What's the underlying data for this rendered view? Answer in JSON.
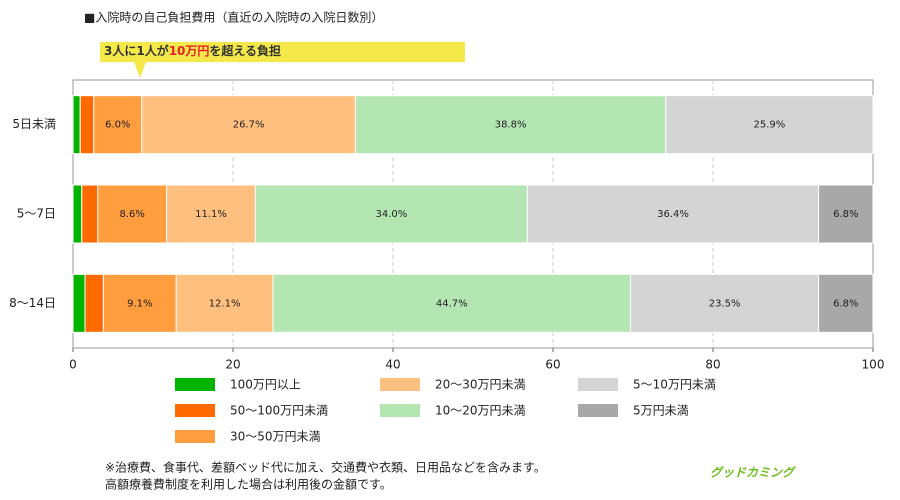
{
  "chart_data": {
    "type": "stacked-barh",
    "title": "■入院時の自己負担費用（直近の入院時の入院日数別）",
    "annotation": [
      "3人に1人が",
      "10万円",
      "を超える負担"
    ],
    "categories": [
      "5日未満",
      "5〜7日",
      "8〜14日"
    ],
    "series": [
      {
        "name": "100万円以上",
        "color": "#00b400",
        "values": [
          0.9,
          1.1,
          1.5
        ],
        "value_labels": [
          null,
          null,
          null
        ]
      },
      {
        "name": "50〜100万円未満",
        "color": "#ff6a00",
        "values": [
          1.7,
          2.0,
          2.3
        ],
        "value_labels": [
          null,
          null,
          null
        ]
      },
      {
        "name": "30〜50万円未満",
        "color": "#ff9d3f",
        "values": [
          6.0,
          8.6,
          9.1
        ],
        "value_labels": [
          "6.0%",
          "8.6%",
          "9.1%"
        ]
      },
      {
        "name": "20〜30万円未満",
        "color": "#ffbf7f",
        "values": [
          26.7,
          11.1,
          12.1
        ],
        "value_labels": [
          "26.7%",
          "11.1%",
          "12.1%"
        ]
      },
      {
        "name": "10〜20万円未満",
        "color": "#b4e6b4",
        "values": [
          38.8,
          34.0,
          44.7
        ],
        "value_labels": [
          "38.8%",
          "34.0%",
          "44.7%"
        ]
      },
      {
        "name": "5〜10万円未満",
        "color": "#d4d4d4",
        "values": [
          25.9,
          36.4,
          23.5
        ],
        "value_labels": [
          "25.9%",
          "36.4%",
          "23.5%"
        ]
      },
      {
        "name": "5万円未満",
        "color": "#a8a8a8",
        "values": [
          0,
          6.8,
          6.8
        ],
        "value_labels": [
          null,
          "6.8%",
          "6.8%"
        ]
      }
    ],
    "xlim": [
      0,
      100
    ],
    "xticks": [
      0,
      20,
      40,
      60,
      80,
      100
    ],
    "grid": true,
    "footnotes": [
      "※治療費、食事代、差額ベッド代に加え、交通費や衣類、日用品などを含みます。",
      "高額療養費制度を利用した場合は利用後の金額です。"
    ],
    "logo": "グッドカミング"
  }
}
